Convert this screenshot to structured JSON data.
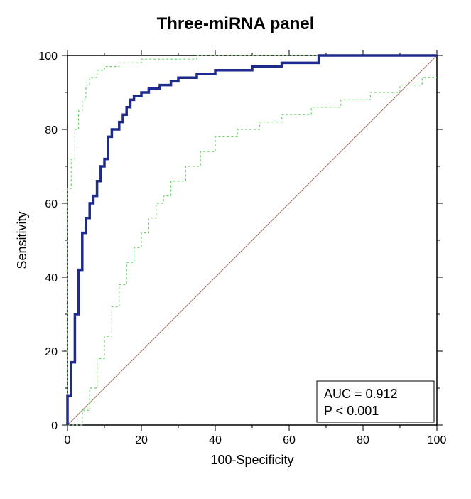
{
  "chart": {
    "type": "ROC",
    "title": "Three-miRNA panel",
    "title_fontsize": 24,
    "title_fontweight": 700,
    "xlabel": "100-Specificity",
    "ylabel": "Sensitivity",
    "label_fontsize": 18,
    "tick_fontsize": 16,
    "xlim": [
      0,
      100
    ],
    "ylim": [
      0,
      100
    ],
    "xtick_step": 20,
    "ytick_step": 20,
    "background_color": "#ffffff",
    "plot_border_color": "#000000",
    "plot_border_width": 1.5,
    "minor_tick_step": 10,
    "major_tick_len": 8,
    "minor_tick_len": 4,
    "series": {
      "roc": {
        "color": "#1e2a8c",
        "line_width": 3.5,
        "dash": "none",
        "points": [
          [
            0,
            0
          ],
          [
            0,
            8
          ],
          [
            1,
            8
          ],
          [
            1,
            17
          ],
          [
            2,
            17
          ],
          [
            2,
            30
          ],
          [
            3,
            30
          ],
          [
            3,
            42
          ],
          [
            4,
            42
          ],
          [
            4,
            52
          ],
          [
            5,
            52
          ],
          [
            5,
            56
          ],
          [
            6,
            56
          ],
          [
            6,
            60
          ],
          [
            7,
            60
          ],
          [
            7,
            62
          ],
          [
            8,
            62
          ],
          [
            8,
            66
          ],
          [
            9,
            66
          ],
          [
            9,
            70
          ],
          [
            10,
            70
          ],
          [
            10,
            72
          ],
          [
            11,
            72
          ],
          [
            11,
            78
          ],
          [
            12,
            78
          ],
          [
            12,
            80
          ],
          [
            14,
            80
          ],
          [
            14,
            82
          ],
          [
            15,
            82
          ],
          [
            15,
            84
          ],
          [
            16,
            84
          ],
          [
            16,
            86
          ],
          [
            17,
            86
          ],
          [
            17,
            88
          ],
          [
            18,
            88
          ],
          [
            18,
            89
          ],
          [
            20,
            89
          ],
          [
            20,
            90
          ],
          [
            22,
            90
          ],
          [
            22,
            91
          ],
          [
            25,
            91
          ],
          [
            25,
            92
          ],
          [
            28,
            92
          ],
          [
            28,
            93
          ],
          [
            30,
            93
          ],
          [
            30,
            94
          ],
          [
            35,
            94
          ],
          [
            35,
            95
          ],
          [
            40,
            95
          ],
          [
            40,
            96
          ],
          [
            50,
            96
          ],
          [
            50,
            97
          ],
          [
            58,
            97
          ],
          [
            58,
            98
          ],
          [
            68,
            98
          ],
          [
            68,
            100
          ],
          [
            100,
            100
          ]
        ]
      },
      "ci_upper": {
        "color": "#6ad46a",
        "line_width": 1.2,
        "dash": "3,3",
        "points": [
          [
            0,
            0
          ],
          [
            0,
            64
          ],
          [
            1,
            64
          ],
          [
            1,
            72
          ],
          [
            2,
            72
          ],
          [
            2,
            80
          ],
          [
            3,
            80
          ],
          [
            3,
            85
          ],
          [
            4,
            85
          ],
          [
            4,
            88
          ],
          [
            5,
            88
          ],
          [
            5,
            92
          ],
          [
            6,
            92
          ],
          [
            6,
            94
          ],
          [
            8,
            94
          ],
          [
            8,
            96
          ],
          [
            10,
            96
          ],
          [
            10,
            97
          ],
          [
            14,
            97
          ],
          [
            14,
            98
          ],
          [
            20,
            98
          ],
          [
            20,
            99
          ],
          [
            35,
            99
          ],
          [
            35,
            100
          ],
          [
            100,
            100
          ]
        ]
      },
      "ci_lower": {
        "color": "#6ad46a",
        "line_width": 1.2,
        "dash": "3,3",
        "points": [
          [
            0,
            0
          ],
          [
            4,
            0
          ],
          [
            4,
            4
          ],
          [
            6,
            4
          ],
          [
            6,
            10
          ],
          [
            8,
            10
          ],
          [
            8,
            18
          ],
          [
            10,
            18
          ],
          [
            10,
            24
          ],
          [
            12,
            24
          ],
          [
            12,
            32
          ],
          [
            14,
            32
          ],
          [
            14,
            38
          ],
          [
            16,
            38
          ],
          [
            16,
            44
          ],
          [
            18,
            44
          ],
          [
            18,
            48
          ],
          [
            20,
            48
          ],
          [
            20,
            52
          ],
          [
            22,
            52
          ],
          [
            22,
            56
          ],
          [
            24,
            56
          ],
          [
            24,
            60
          ],
          [
            26,
            60
          ],
          [
            26,
            62
          ],
          [
            28,
            62
          ],
          [
            28,
            66
          ],
          [
            32,
            66
          ],
          [
            32,
            70
          ],
          [
            36,
            70
          ],
          [
            36,
            74
          ],
          [
            40,
            74
          ],
          [
            40,
            78
          ],
          [
            46,
            78
          ],
          [
            46,
            80
          ],
          [
            52,
            80
          ],
          [
            52,
            82
          ],
          [
            58,
            82
          ],
          [
            58,
            84
          ],
          [
            66,
            84
          ],
          [
            66,
            86
          ],
          [
            74,
            86
          ],
          [
            74,
            88
          ],
          [
            82,
            88
          ],
          [
            82,
            90
          ],
          [
            90,
            90
          ],
          [
            90,
            92
          ],
          [
            96,
            92
          ],
          [
            96,
            94
          ],
          [
            100,
            94
          ]
        ]
      },
      "diagonal": {
        "color": "#a07060",
        "line_width": 1,
        "dash": "none",
        "points": [
          [
            0,
            0
          ],
          [
            100,
            100
          ]
        ]
      }
    },
    "stats": {
      "auc_label": "AUC = 0.912",
      "p_label": "P < 0.001",
      "box_border_color": "#000000",
      "box_border_width": 1,
      "box_bg": "#ffffff"
    }
  }
}
